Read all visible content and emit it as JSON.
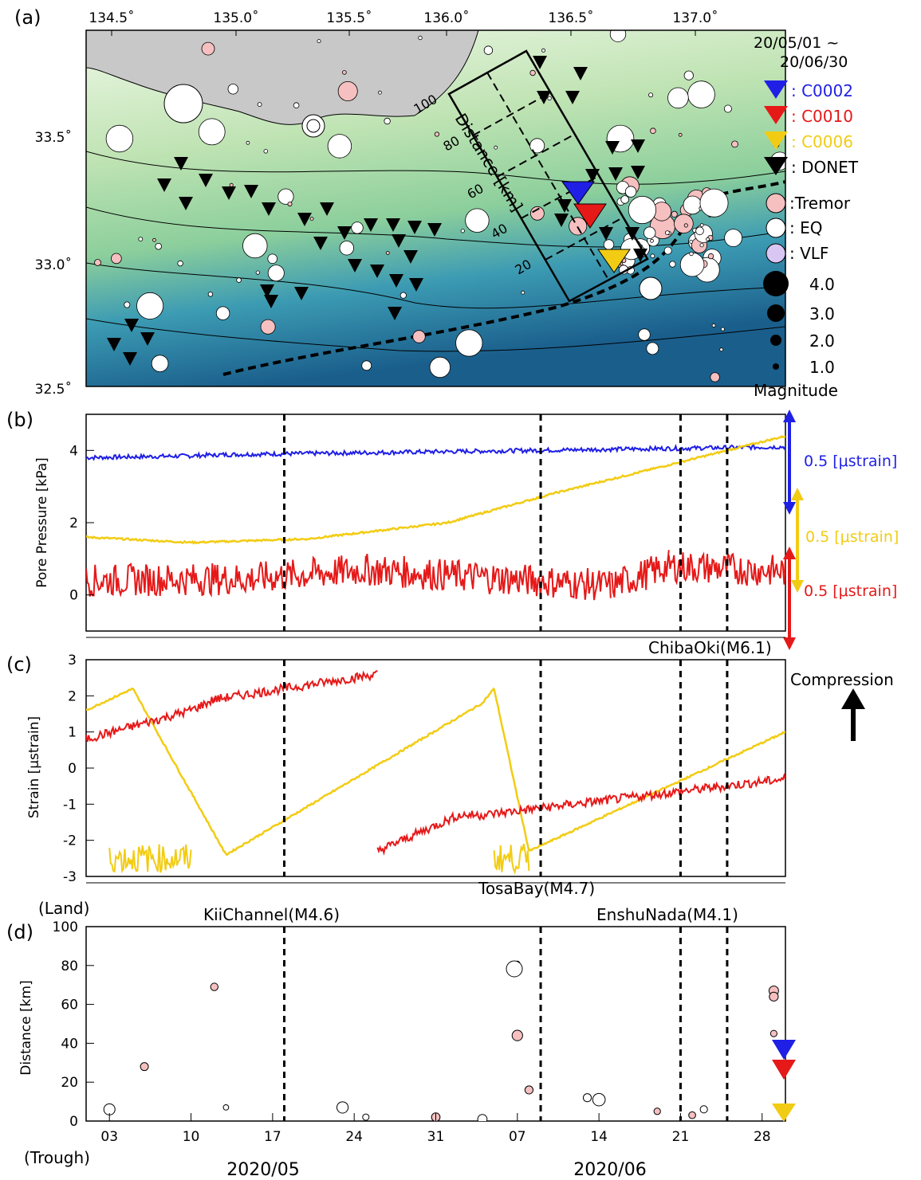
{
  "panels": {
    "a": {
      "label": "(a)",
      "period": [
        "20/05/01 ~",
        "20/06/30"
      ],
      "lon_ticks": [
        "134.5˚",
        "135.0˚",
        "135.5˚",
        "136.0˚",
        "136.5˚",
        "137.0˚"
      ],
      "lat_ticks": [
        "33.5˚",
        "33.0˚",
        "32.5˚"
      ],
      "legend_stations": [
        {
          "label": ": C0002",
          "color": "#1f1fe6"
        },
        {
          "label": ": C0010",
          "color": "#e61919"
        },
        {
          "label": ": C0006",
          "color": "#f2cc14"
        },
        {
          "label": ": DONET",
          "color": "#000000"
        }
      ],
      "legend_events": [
        ":Tremor",
        ": EQ",
        ": VLF"
      ],
      "legend_magnitudes": [
        "4.0",
        "3.0",
        "2.0",
        "1.0"
      ],
      "magnitude_title": "Magnitude",
      "box_distance_label": "Distance [km]",
      "box_distance_ticks": [
        "100",
        "80",
        "60",
        "40",
        "20"
      ],
      "colors": {
        "land": "#c8c8c8",
        "shallow": "#d9f0c9",
        "mid": "#9fd6a2",
        "deep": "#2e8fb8",
        "deepest": "#1b5f8e",
        "tremor": "#f6c0c0",
        "vlf": "#d9c6f2"
      }
    },
    "b": {
      "label": "(b)",
      "ylabel": "Pore Pressure [kPa]",
      "yticks": [
        "0",
        "2",
        "4"
      ],
      "scale_labels": [
        {
          "text": "0.5 [μstrain]",
          "color": "#1f1fe6"
        },
        {
          "text": "0.5 [μstrain]",
          "color": "#f2cc14"
        },
        {
          "text": "0.5 [μstrain]",
          "color": "#e61919"
        }
      ],
      "event_label": "ChibaOki(M6.1)"
    },
    "c": {
      "label": "(c)",
      "ylabel": "Strain [μstrain]",
      "yticks": [
        "3",
        "2",
        "1",
        "0",
        "-1",
        "-2",
        "-3"
      ],
      "compression_label": "Compression",
      "event_label": "TosaBay(M4.7)"
    },
    "d": {
      "label": "(d)",
      "ylabel": "Distance [km]",
      "yticks": [
        "100",
        "80",
        "60",
        "40",
        "20",
        "0"
      ],
      "land_label": "(Land)",
      "trough_label": "(Trough)",
      "event_labels": [
        "KiiChannel(M4.6)",
        "EnshuNada(M4.1)"
      ],
      "xticks": [
        "03",
        "10",
        "17",
        "24",
        "31",
        "07",
        "14",
        "21",
        "28"
      ],
      "months": [
        "2020/05",
        "2020/06"
      ]
    }
  },
  "chart_data": [
    {
      "type": "scatter",
      "panel": "b",
      "xlabel": "",
      "ylabel": "Pore Pressure [kPa]",
      "ylim": [
        -1,
        5
      ],
      "xlim": [
        "2020-05-01",
        "2020-06-30"
      ],
      "series": [
        {
          "color": "#1f1fe6",
          "x": [
            "2020-05-01",
            "2020-05-10",
            "2020-05-12",
            "2020-06-08",
            "2020-06-30"
          ],
          "values": [
            3.8,
            3.85,
            3.88,
            4.0,
            4.1
          ]
        },
        {
          "color": "#f2cc14",
          "x": [
            "2020-05-01",
            "2020-05-10",
            "2020-05-20",
            "2020-06-01",
            "2020-06-10",
            "2020-06-20",
            "2020-06-30"
          ],
          "values": [
            1.6,
            1.45,
            1.55,
            2.0,
            2.8,
            3.6,
            4.4
          ]
        },
        {
          "color": "#e61919",
          "x": [
            "2020-05-01",
            "2020-05-15",
            "2020-05-25",
            "2020-06-15",
            "2020-06-20",
            "2020-06-30"
          ],
          "values": [
            0.4,
            0.45,
            0.7,
            0.25,
            0.8,
            0.65
          ]
        }
      ],
      "vlines": [
        "2020-05-18",
        "2020-06-09",
        "2020-06-21",
        "2020-06-25"
      ]
    },
    {
      "type": "scatter",
      "panel": "c",
      "xlabel": "",
      "ylabel": "Strain [μstrain]",
      "ylim": [
        -3,
        3
      ],
      "series": [
        {
          "color": "#f2cc14",
          "x": [
            "2020-05-01",
            "2020-05-05",
            "2020-05-13",
            "2020-06-04",
            "2020-06-05",
            "2020-06-08",
            "2020-06-30"
          ],
          "values": [
            1.6,
            2.2,
            -2.4,
            1.8,
            2.2,
            -2.3,
            1.0
          ]
        },
        {
          "color": "#e61919",
          "x": [
            "2020-05-01",
            "2020-05-10",
            "2020-05-12",
            "2020-05-26",
            "2020-05-26",
            "2020-06-02",
            "2020-06-04",
            "2020-06-30"
          ],
          "values": [
            0.8,
            1.6,
            1.9,
            2.6,
            -2.3,
            -1.3,
            -1.3,
            -0.3
          ]
        }
      ],
      "vlines": [
        "2020-05-18",
        "2020-06-09",
        "2020-06-21",
        "2020-06-25"
      ]
    },
    {
      "type": "scatter",
      "panel": "d",
      "xlabel": "",
      "ylabel": "Distance [km]",
      "ylim": [
        0,
        100
      ],
      "events": {
        "tremor": {
          "x": [
            "2020-05-12",
            "2020-05-06",
            "2020-06-08",
            "2020-06-07",
            "2020-06-22",
            "2020-06-29",
            "2020-06-29",
            "2020-06-29",
            "2020-05-31",
            "2020-06-19"
          ],
          "values": [
            69,
            28,
            16,
            44,
            3,
            45,
            67,
            64,
            2,
            5
          ]
        },
        "eq": {
          "x": [
            "2020-06-07",
            "2020-05-13",
            "2020-06-13",
            "2020-06-14",
            "2020-06-23",
            "2020-05-25",
            "2020-05-03",
            "2020-06-04",
            "2020-05-23"
          ],
          "values": [
            81,
            7,
            12,
            11,
            6,
            2,
            6,
            1,
            7
          ]
        }
      },
      "vlines": [
        "2020-05-18",
        "2020-06-09",
        "2020-06-21",
        "2020-06-25"
      ]
    }
  ]
}
